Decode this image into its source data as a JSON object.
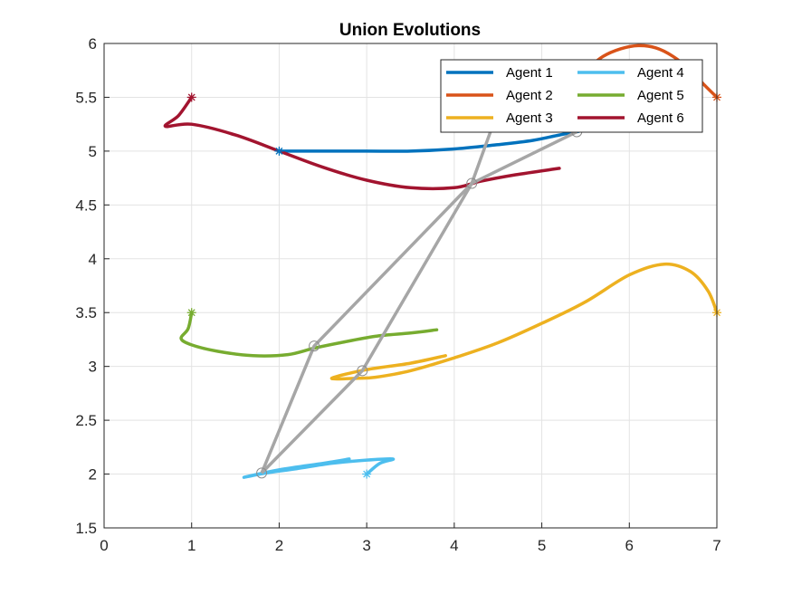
{
  "chart_data": {
    "type": "line",
    "title": "Union Evolutions",
    "xlabel": "",
    "ylabel": "",
    "xlim": [
      0,
      7
    ],
    "ylim": [
      1.5,
      6
    ],
    "xticks": [
      "0",
      "1",
      "2",
      "3",
      "4",
      "5",
      "6",
      "7"
    ],
    "yticks": [
      "1.5",
      "2",
      "2.5",
      "3",
      "3.5",
      "4",
      "4.5",
      "5",
      "5.5",
      "6"
    ],
    "grid": true,
    "legend_position": "top-right",
    "series": [
      {
        "name": "Agent 1",
        "color": "#0072BD",
        "x": [
          2.0,
          2.5,
          3.0,
          3.5,
          4.0,
          4.5,
          4.9,
          5.2,
          5.4,
          5.55,
          5.7
        ],
        "y": [
          5.0,
          5.0,
          5.0,
          5.0,
          5.02,
          5.06,
          5.1,
          5.15,
          5.18,
          5.21,
          5.25
        ],
        "start": [
          2.0,
          5.0
        ]
      },
      {
        "name": "Agent 2",
        "color": "#D95319",
        "x": [
          5.5,
          5.7,
          5.9,
          6.1,
          6.3,
          6.5,
          6.7,
          6.85,
          7.0
        ],
        "y": [
          5.75,
          5.88,
          5.95,
          5.98,
          5.96,
          5.88,
          5.75,
          5.62,
          5.5
        ],
        "start": [
          7.0,
          5.5
        ]
      },
      {
        "name": "Agent 3",
        "color": "#EDB120",
        "x": [
          7.0,
          6.9,
          6.7,
          6.4,
          6.0,
          5.5,
          5.0,
          4.5,
          4.0,
          3.5,
          3.1,
          2.9,
          2.6,
          3.0,
          3.5,
          3.9
        ],
        "y": [
          3.5,
          3.7,
          3.88,
          3.95,
          3.85,
          3.6,
          3.4,
          3.22,
          3.08,
          2.96,
          2.9,
          2.89,
          2.89,
          2.97,
          3.03,
          3.1
        ],
        "start": [
          7.0,
          3.5
        ]
      },
      {
        "name": "Agent 4",
        "color": "#4DBEEE",
        "x": [
          3.0,
          3.15,
          3.3,
          3.0,
          2.6,
          2.2,
          1.85,
          1.6,
          2.0,
          2.5,
          2.8
        ],
        "y": [
          2.0,
          2.1,
          2.14,
          2.13,
          2.1,
          2.05,
          2.01,
          1.97,
          2.04,
          2.1,
          2.14
        ],
        "start": [
          3.0,
          2.0
        ]
      },
      {
        "name": "Agent 5",
        "color": "#77AC30",
        "x": [
          1.0,
          0.96,
          0.88,
          1.0,
          1.3,
          1.7,
          2.1,
          2.4,
          2.7,
          3.1,
          3.5,
          3.8
        ],
        "y": [
          3.5,
          3.35,
          3.26,
          3.2,
          3.14,
          3.1,
          3.11,
          3.17,
          3.22,
          3.28,
          3.31,
          3.34
        ],
        "start": [
          1.0,
          3.5
        ]
      },
      {
        "name": "Agent 6",
        "color": "#A2142F",
        "x": [
          1.0,
          0.85,
          0.7,
          1.0,
          1.5,
          2.0,
          2.5,
          3.0,
          3.5,
          4.0,
          4.3,
          4.7,
          5.2
        ],
        "y": [
          5.5,
          5.33,
          5.23,
          5.25,
          5.15,
          5.0,
          4.85,
          4.73,
          4.66,
          4.66,
          4.72,
          4.78,
          4.84
        ],
        "start": [
          1.0,
          5.5
        ]
      }
    ],
    "union_links": {
      "color": "#A6A6A6",
      "nodes": [
        [
          1.8,
          2.01
        ],
        [
          2.4,
          3.19
        ],
        [
          2.95,
          2.96
        ],
        [
          4.2,
          4.7
        ],
        [
          5.4,
          5.18
        ],
        [
          4.6,
          5.6
        ]
      ],
      "lines": [
        [
          [
            1.8,
            2.01
          ],
          [
            2.4,
            3.19
          ],
          [
            4.2,
            4.7
          ],
          [
            5.4,
            5.18
          ]
        ],
        [
          [
            1.8,
            2.01
          ],
          [
            2.95,
            2.96
          ],
          [
            4.2,
            4.7
          ],
          [
            4.6,
            5.6
          ]
        ]
      ]
    }
  }
}
